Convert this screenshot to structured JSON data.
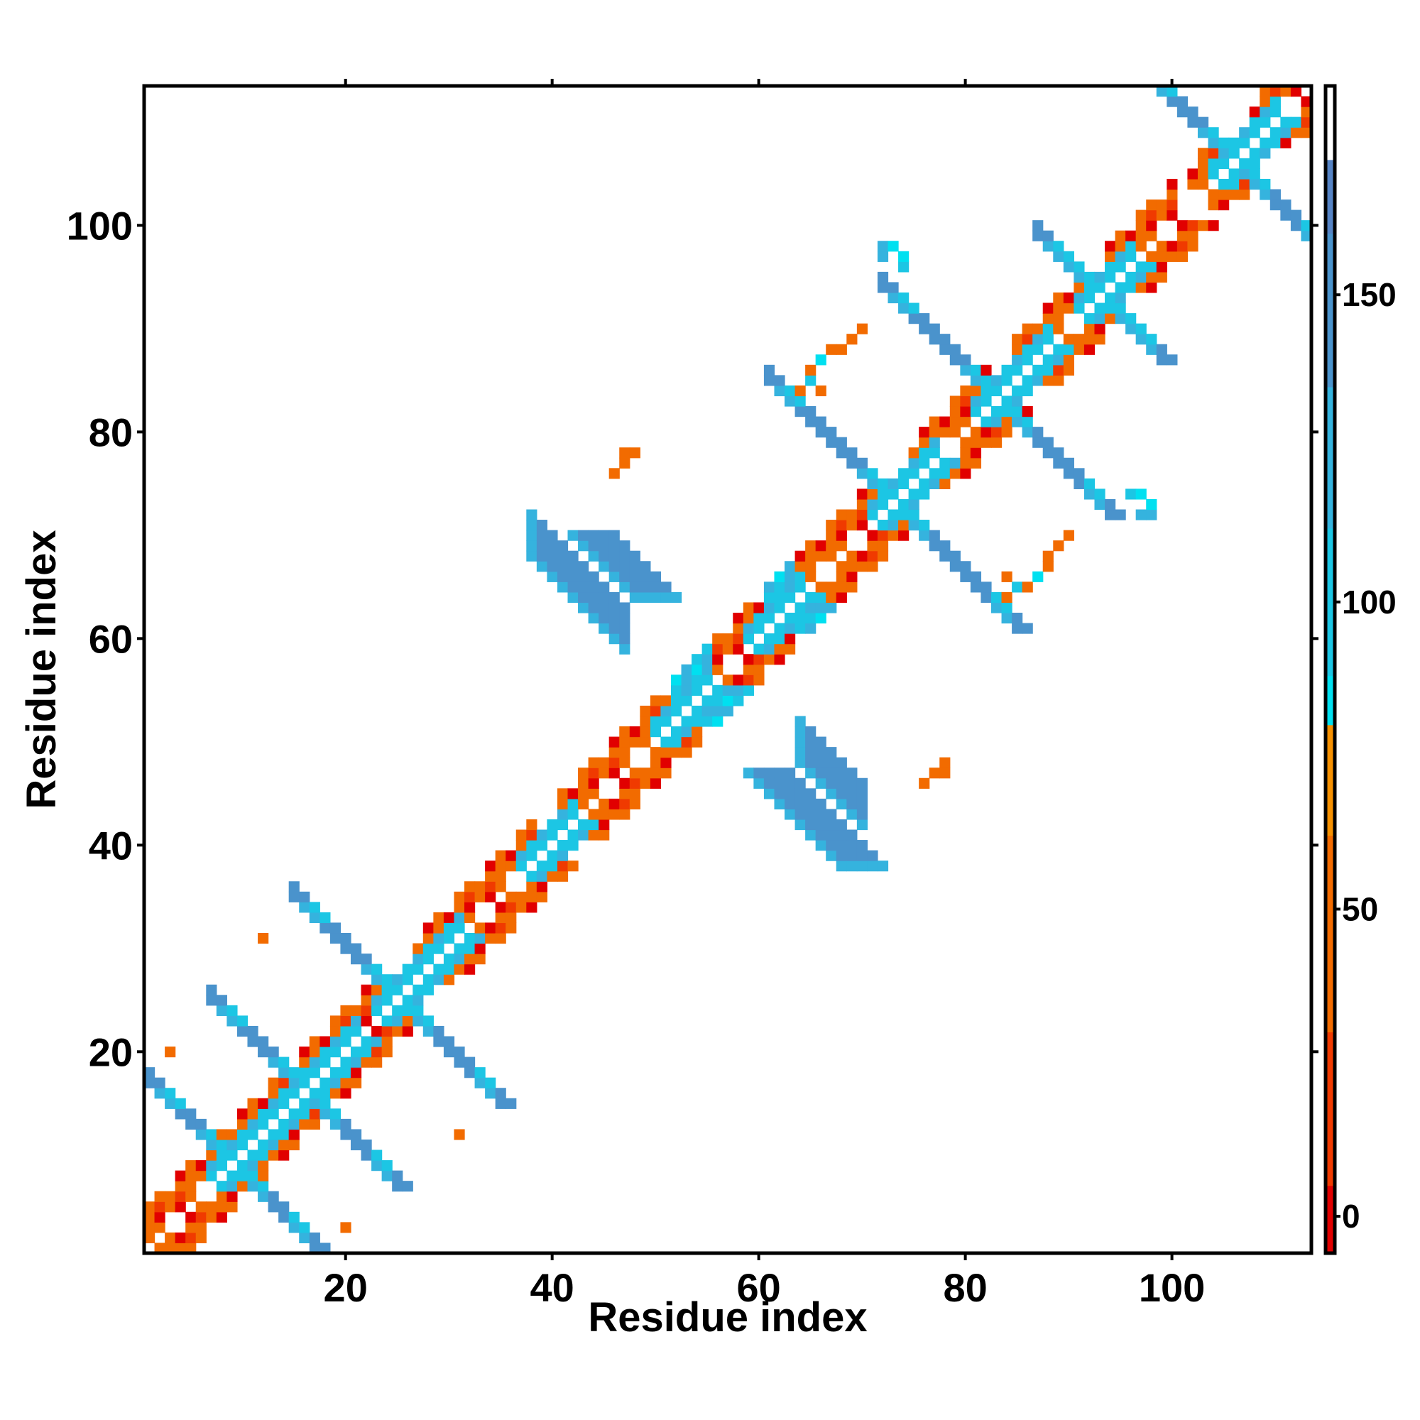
{
  "chart_data": {
    "type": "heatmap",
    "title": "",
    "xlabel": "Residue index",
    "ylabel": "Residue index",
    "xlim": [
      0.5,
      113.5
    ],
    "ylim": [
      0.5,
      113.5
    ],
    "x_ticks": [
      20,
      40,
      60,
      80,
      100
    ],
    "y_ticks": [
      20,
      40,
      60,
      80,
      100
    ],
    "x_tick_labels": [
      "20",
      "40",
      "60",
      "80",
      "100"
    ],
    "y_tick_labels": [
      "20",
      "40",
      "60",
      "80",
      "100"
    ],
    "grid": false,
    "colorbar": {
      "range": [
        -6,
        184
      ],
      "ticks": [
        0,
        50,
        100,
        150
      ],
      "tick_labels": [
        "0",
        "50",
        "100",
        "150"
      ],
      "placement": "right",
      "bands": [
        {
          "from": -6,
          "to": 5,
          "color": "#e10000"
        },
        {
          "from": 5,
          "to": 30,
          "color": "#f03a00"
        },
        {
          "from": 30,
          "to": 62,
          "color": "#f26b00"
        },
        {
          "from": 62,
          "to": 80,
          "color": "#f59000"
        },
        {
          "from": 80,
          "to": 88,
          "color": "#00e0f0"
        },
        {
          "from": 88,
          "to": 112,
          "color": "#1cc6e4"
        },
        {
          "from": 112,
          "to": 135,
          "color": "#35b3de"
        },
        {
          "from": 135,
          "to": 160,
          "color": "#4a93cc"
        },
        {
          "from": 160,
          "to": 172,
          "color": "#5583c4"
        },
        {
          "from": 172,
          "to": 184,
          "color": "#ffffff"
        }
      ]
    },
    "patterns": {
      "diagonal_dense": [
        [
          1,
          10,
          "alpha"
        ],
        [
          11,
          22,
          "alpha"
        ],
        [
          23,
          24,
          "alpha"
        ],
        [
          27,
          38,
          "alpha"
        ],
        [
          41,
          51,
          "alpha"
        ],
        [
          52,
          55,
          "ppii"
        ],
        [
          56,
          60,
          "alpha"
        ],
        [
          61,
          63,
          "ppii"
        ],
        [
          64,
          72,
          "alpha"
        ],
        [
          75,
          82,
          "alpha"
        ],
        [
          85,
          91,
          "alpha"
        ],
        [
          94,
          100,
          "alpha"
        ],
        [
          102,
          105,
          "alpha"
        ],
        [
          108,
          113,
          "alpha"
        ]
      ],
      "turn_regions": [
        [
          9,
          8
        ],
        [
          16,
          5
        ],
        [
          25,
          6
        ],
        [
          39,
          3
        ],
        [
          52,
          3
        ],
        [
          61,
          3
        ],
        [
          73,
          4
        ],
        [
          83,
          5
        ],
        [
          93,
          3
        ],
        [
          106,
          4
        ]
      ],
      "beta_arms": [
        [
          9,
          2,
          6,
          6
        ],
        [
          9,
          6,
          2,
          6
        ],
        [
          16,
          2,
          7,
          5
        ],
        [
          16,
          7,
          2,
          5
        ],
        [
          25,
          2,
          8,
          7
        ],
        [
          25,
          8,
          2,
          7
        ],
        [
          73,
          2,
          10,
          10
        ],
        [
          73,
          10,
          2,
          9
        ],
        [
          83,
          2,
          9,
          10
        ],
        [
          83,
          9,
          2,
          8
        ],
        [
          93,
          2,
          4,
          5
        ],
        [
          93,
          4,
          2,
          5
        ],
        [
          106,
          2,
          7,
          7
        ],
        [
          106,
          7,
          2,
          8
        ]
      ],
      "off_blocks": [
        [
          38,
          70,
          10,
          5
        ],
        [
          64,
          50,
          7,
          5
        ]
      ],
      "isolated_cells": [
        [
          3,
          20,
          52
        ],
        [
          12,
          31,
          52
        ],
        [
          31,
          12,
          52
        ],
        [
          20,
          3,
          52
        ],
        [
          46,
          76,
          50
        ],
        [
          47,
          78,
          56
        ],
        [
          48,
          78,
          56
        ],
        [
          76,
          46,
          50
        ],
        [
          78,
          47,
          56
        ],
        [
          77,
          47,
          56
        ],
        [
          72,
          98,
          112
        ],
        [
          74,
          96,
          90
        ],
        [
          74,
          97,
          82
        ],
        [
          97,
          72,
          112
        ],
        [
          96,
          74,
          90
        ],
        [
          97,
          74,
          82
        ],
        [
          84,
          64,
          60
        ],
        [
          86,
          65,
          50
        ],
        [
          85,
          65,
          90
        ],
        [
          87,
          66,
          82
        ],
        [
          88,
          67,
          50
        ],
        [
          88,
          68,
          56
        ],
        [
          89,
          69,
          50
        ],
        [
          90,
          70,
          56
        ],
        [
          66,
          84,
          60
        ],
        [
          65,
          86,
          50
        ],
        [
          65,
          85,
          90
        ],
        [
          66,
          87,
          82
        ],
        [
          67,
          88,
          50
        ],
        [
          68,
          88,
          56
        ],
        [
          69,
          89,
          50
        ],
        [
          70,
          90,
          56
        ],
        [
          98,
          72,
          120
        ],
        [
          98,
          73,
          82
        ],
        [
          72,
          98,
          120
        ],
        [
          73,
          98,
          82
        ]
      ]
    }
  }
}
